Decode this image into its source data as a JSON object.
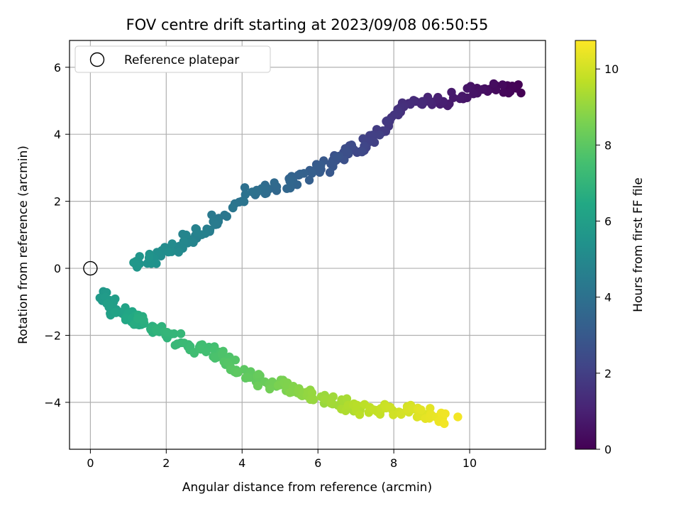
{
  "chart_data": {
    "type": "scatter",
    "title": "FOV centre drift starting at 2023/09/08 06:50:55",
    "xlabel": "Angular distance from reference (arcmin)",
    "ylabel": "Rotation from reference (arcmin)",
    "colorbar_label": "Hours from first FF file",
    "xlim": [
      -0.55,
      12.0
    ],
    "ylim": [
      -5.4,
      6.8
    ],
    "xticks": [
      0,
      2,
      4,
      6,
      8,
      10
    ],
    "xtick_labels": [
      "0",
      "2",
      "4",
      "6",
      "8",
      "10"
    ],
    "yticks": [
      -4,
      -2,
      0,
      2,
      4,
      6
    ],
    "ytick_labels": [
      "−4",
      "−2",
      "0",
      "2",
      "4",
      "6"
    ],
    "colorbar_range": [
      0,
      10.75
    ],
    "colorbar_ticks": [
      0,
      2,
      4,
      6,
      8,
      10
    ],
    "colorbar_tick_labels": [
      "0",
      "2",
      "4",
      "6",
      "8",
      "10"
    ],
    "colormap": "viridis",
    "grid": true,
    "legend": {
      "placement": "upper-left",
      "entries": [
        {
          "label": "Reference platepar",
          "marker": "open-circle"
        }
      ]
    },
    "reference_point": {
      "x": 0,
      "y": 0
    },
    "series_anchors": [
      {
        "name": "upper-branch",
        "hours_start": 0.0,
        "hours_end": 5.7,
        "points": [
          [
            11.3,
            5.3
          ],
          [
            10.3,
            5.4
          ],
          [
            9.3,
            5.0
          ],
          [
            8.5,
            4.9
          ],
          [
            7.8,
            4.3
          ],
          [
            7.2,
            3.6
          ],
          [
            6.6,
            3.4
          ],
          [
            6.0,
            2.9
          ],
          [
            5.2,
            2.5
          ],
          [
            4.3,
            2.3
          ],
          [
            3.2,
            1.3
          ],
          [
            2.6,
            0.9
          ],
          [
            1.9,
            0.4
          ],
          [
            1.1,
            0.1
          ]
        ]
      },
      {
        "name": "lower-branch",
        "hours_start": 5.7,
        "hours_end": 10.6,
        "points": [
          [
            0.3,
            -0.8
          ],
          [
            0.6,
            -1.2
          ],
          [
            1.0,
            -1.4
          ],
          [
            1.4,
            -1.6
          ],
          [
            2.0,
            -2.0
          ],
          [
            2.8,
            -2.4
          ],
          [
            3.4,
            -2.6
          ],
          [
            3.9,
            -3.1
          ],
          [
            4.6,
            -3.4
          ],
          [
            5.2,
            -3.5
          ],
          [
            5.8,
            -3.8
          ],
          [
            6.6,
            -4.0
          ],
          [
            7.2,
            -4.2
          ],
          [
            8.0,
            -4.2
          ],
          [
            8.8,
            -4.3
          ],
          [
            9.6,
            -4.5
          ]
        ]
      }
    ]
  }
}
